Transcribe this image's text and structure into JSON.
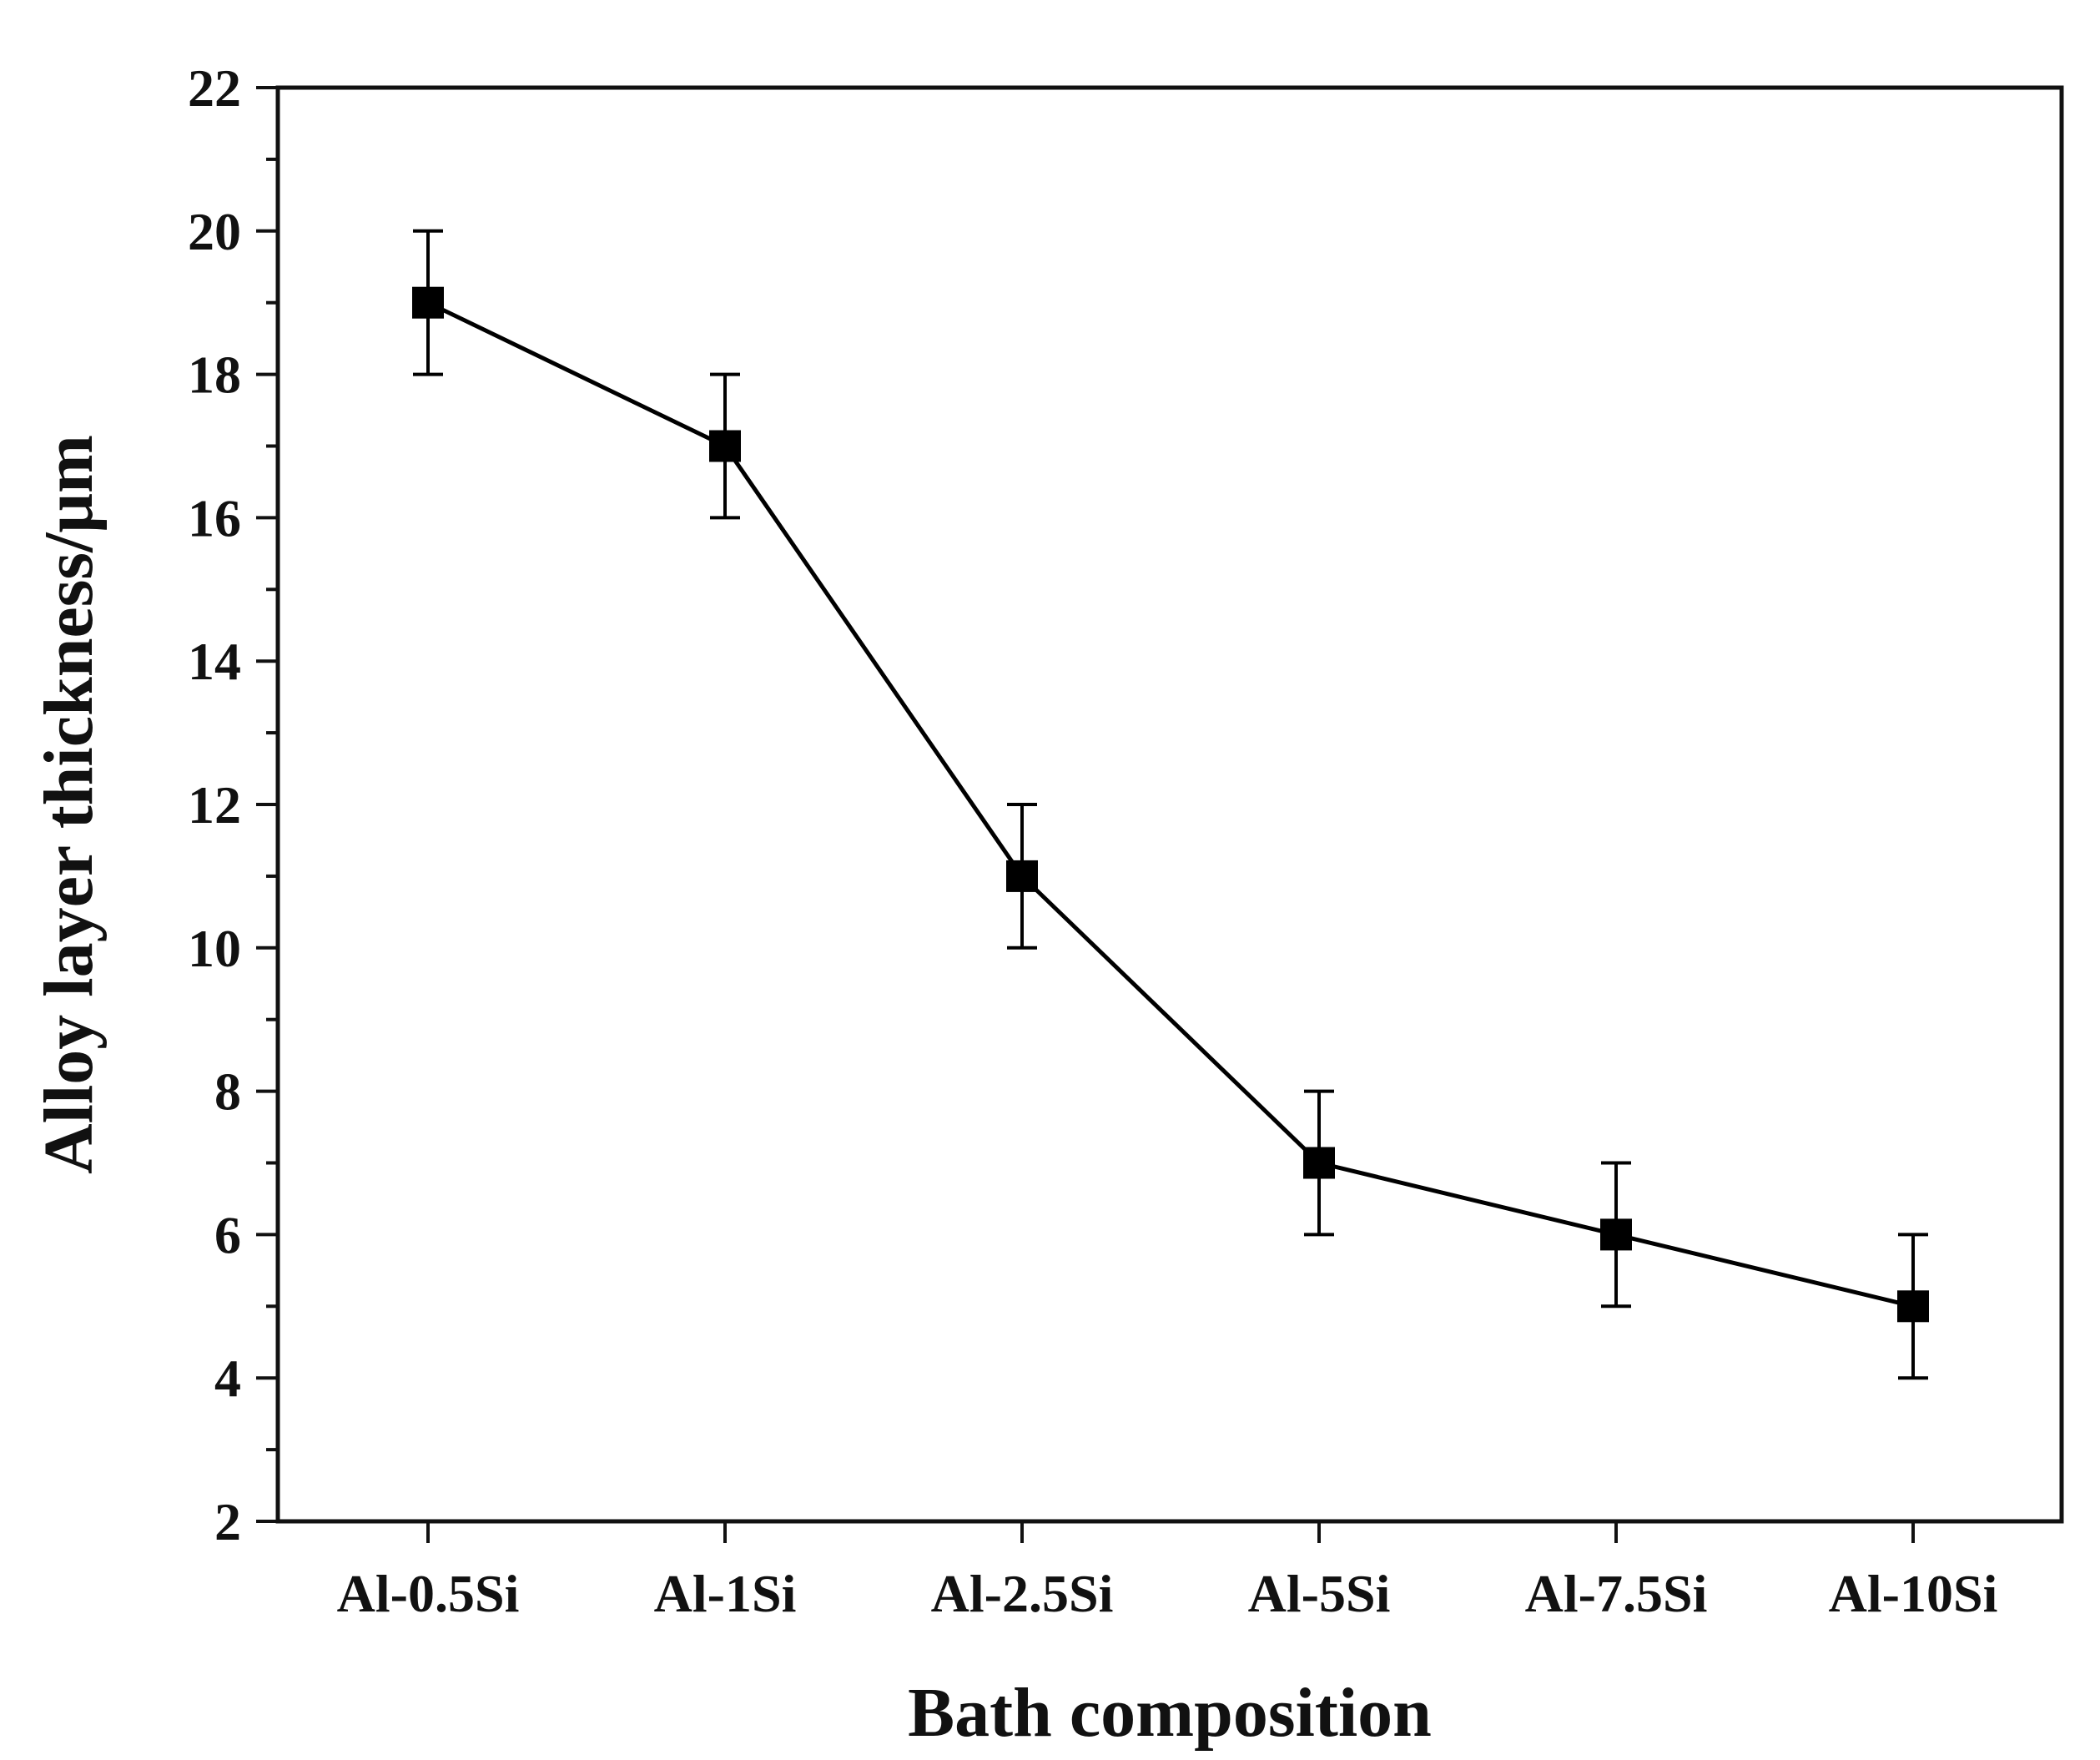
{
  "chart_data": {
    "type": "line",
    "title": "",
    "xlabel": "Bath composition",
    "ylabel": "Alloy layer thickness/μm",
    "categories": [
      "Al-0.5Si",
      "Al-1Si",
      "Al-2.5Si",
      "Al-5Si",
      "Al-7.5Si",
      "Al-10Si"
    ],
    "series": [
      {
        "name": "Alloy layer thickness",
        "values": [
          19,
          17,
          11,
          7,
          6,
          5
        ],
        "errors": [
          1,
          1,
          1,
          1,
          1,
          1
        ],
        "marker": "square",
        "color": "#000000"
      }
    ],
    "ylim": [
      2,
      22
    ],
    "yticks": [
      2,
      4,
      6,
      8,
      10,
      12,
      14,
      16,
      18,
      20,
      22
    ],
    "yminor_step": 1,
    "grid": false,
    "legend": "none"
  }
}
